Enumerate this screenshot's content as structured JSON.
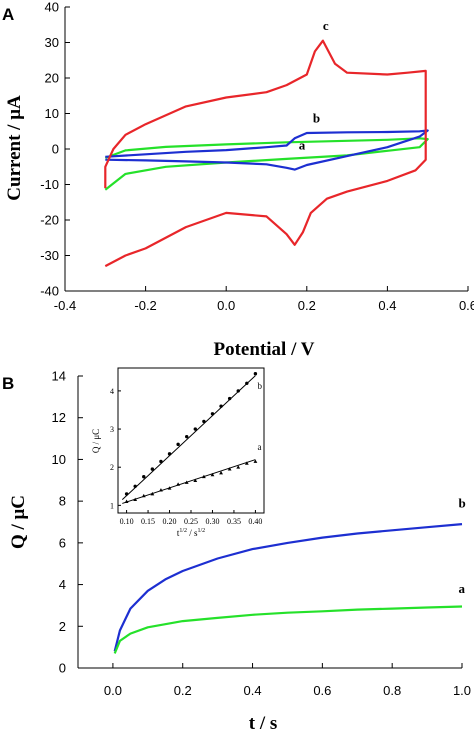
{
  "colors": {
    "red": "#e8262a",
    "blue": "#1d2fd1",
    "green": "#25e12a",
    "black": "#000000"
  },
  "panels": {
    "a": "A",
    "b": "B"
  },
  "chart_data": [
    {
      "type": "line",
      "panel": "A",
      "xlabel": "Potential / V",
      "ylabel": "Current / μA",
      "xlim": [
        -0.4,
        0.6
      ],
      "ylim": [
        -40,
        40
      ],
      "xticks": [
        "-0.4",
        "-0.2",
        "0.0",
        "0.2",
        "0.4",
        "0.6"
      ],
      "yticks": [
        "-40",
        "-30",
        "-20",
        "-10",
        "0",
        "10",
        "20",
        "30",
        "40"
      ],
      "grid": false,
      "series": [
        {
          "name": "a",
          "color": "#25e12a",
          "x": [
            -0.3,
            -0.25,
            -0.15,
            0.0,
            0.15,
            0.3,
            0.4,
            0.48,
            0.5,
            0.48,
            0.4,
            0.3,
            0.15,
            0.0,
            -0.15,
            -0.25,
            -0.3
          ],
          "y": [
            -11.5,
            -7.0,
            -5.0,
            -3.8,
            -2.8,
            -1.8,
            -0.5,
            0.5,
            2.8,
            3.0,
            2.6,
            2.3,
            1.9,
            1.3,
            0.6,
            -0.4,
            -2.5
          ]
        },
        {
          "name": "b",
          "color": "#1d2fd1",
          "x": [
            -0.3,
            -0.2,
            -0.1,
            0.0,
            0.1,
            0.15,
            0.17,
            0.2,
            0.3,
            0.4,
            0.48,
            0.5,
            0.48,
            0.4,
            0.3,
            0.2,
            0.17,
            0.15,
            0.1,
            0.0,
            -0.1,
            -0.2,
            -0.3
          ],
          "y": [
            -3.0,
            -3.2,
            -3.5,
            -3.8,
            -4.3,
            -5.3,
            -5.8,
            -4.5,
            -2.0,
            0.5,
            3.5,
            5.2,
            5.0,
            4.8,
            4.7,
            4.5,
            3.0,
            1.0,
            0.5,
            -0.3,
            -0.8,
            -1.5,
            -2.2
          ]
        },
        {
          "name": "c",
          "color": "#e8262a",
          "x": [
            -0.3,
            -0.25,
            -0.2,
            -0.1,
            0.0,
            0.1,
            0.15,
            0.17,
            0.19,
            0.21,
            0.25,
            0.3,
            0.4,
            0.47,
            0.495,
            0.495,
            0.45,
            0.4,
            0.3,
            0.27,
            0.24,
            0.22,
            0.2,
            0.15,
            0.1,
            0.0,
            -0.1,
            -0.2,
            -0.25,
            -0.28,
            -0.3,
            -0.3
          ],
          "y": [
            -33.0,
            -30.0,
            -28.0,
            -22.0,
            -18.0,
            -19.0,
            -24.0,
            -27.0,
            -23.5,
            -18.0,
            -14.0,
            -12.0,
            -9.0,
            -6.0,
            -3.0,
            22.0,
            21.5,
            21.0,
            21.5,
            24.0,
            30.5,
            27.5,
            21.0,
            18.0,
            16.0,
            14.5,
            12.0,
            7.0,
            4.0,
            0.0,
            -5.0,
            -11.0
          ]
        }
      ],
      "annotations": [
        "c",
        "b",
        "a"
      ]
    },
    {
      "type": "line",
      "panel": "B",
      "xlabel": "t / s",
      "ylabel": "Q / μC",
      "xlim": [
        -0.1,
        1.0
      ],
      "ylim": [
        0,
        14
      ],
      "xticks": [
        "0.0",
        "0.2",
        "0.4",
        "0.6",
        "0.8",
        "1.0"
      ],
      "yticks": [
        "0",
        "2",
        "4",
        "6",
        "8",
        "10",
        "12",
        "14"
      ],
      "grid": false,
      "series": [
        {
          "name": "b",
          "color": "#1d2fd1",
          "x": [
            0.005,
            0.02,
            0.05,
            0.1,
            0.15,
            0.2,
            0.3,
            0.4,
            0.5,
            0.6,
            0.7,
            0.8,
            0.9,
            1.0
          ],
          "y": [
            0.8,
            1.8,
            2.85,
            3.7,
            4.25,
            4.65,
            5.25,
            5.7,
            6.0,
            6.25,
            6.45,
            6.6,
            6.75,
            6.9
          ]
        },
        {
          "name": "a",
          "color": "#25e12a",
          "x": [
            0.005,
            0.02,
            0.05,
            0.1,
            0.15,
            0.2,
            0.3,
            0.4,
            0.5,
            0.6,
            0.7,
            0.8,
            0.9,
            1.0
          ],
          "y": [
            0.7,
            1.3,
            1.65,
            1.95,
            2.1,
            2.25,
            2.4,
            2.55,
            2.65,
            2.72,
            2.8,
            2.85,
            2.9,
            2.95
          ]
        }
      ],
      "annotations": [
        "b",
        "a"
      ]
    },
    {
      "type": "scatter",
      "panel": "B-inset",
      "xlabel": "t",
      "xlabel_sup1": "1/2",
      "xlabel_mid": " / s",
      "xlabel_sup2": "1/2",
      "ylabel": "Q / μC",
      "xlim": [
        0.08,
        0.42
      ],
      "ylim": [
        0.8,
        4.6
      ],
      "xticks": [
        "0.10",
        "0.15",
        "0.20",
        "0.25",
        "0.30",
        "0.35",
        "0.40"
      ],
      "yticks": [
        "1",
        "2",
        "3",
        "4"
      ],
      "series": [
        {
          "name": "b",
          "marker": "circle",
          "fit": [
            [
              0.09,
              1.15
            ],
            [
              0.4,
              4.4
            ]
          ],
          "x": [
            0.1,
            0.12,
            0.14,
            0.16,
            0.18,
            0.2,
            0.22,
            0.24,
            0.26,
            0.28,
            0.3,
            0.32,
            0.34,
            0.36,
            0.38,
            0.4
          ],
          "y": [
            1.3,
            1.5,
            1.75,
            1.95,
            2.15,
            2.35,
            2.6,
            2.8,
            3.0,
            3.2,
            3.4,
            3.6,
            3.8,
            4.0,
            4.2,
            4.45
          ]
        },
        {
          "name": "a",
          "marker": "triangle",
          "fit": [
            [
              0.09,
              1.05
            ],
            [
              0.4,
              2.2
            ]
          ],
          "x": [
            0.1,
            0.12,
            0.14,
            0.16,
            0.18,
            0.2,
            0.22,
            0.24,
            0.26,
            0.28,
            0.3,
            0.32,
            0.34,
            0.36,
            0.38,
            0.4
          ],
          "y": [
            1.1,
            1.15,
            1.25,
            1.3,
            1.4,
            1.45,
            1.55,
            1.6,
            1.65,
            1.75,
            1.8,
            1.85,
            1.95,
            2.0,
            2.1,
            2.15
          ]
        }
      ],
      "annotations": [
        "b",
        "a"
      ]
    }
  ]
}
